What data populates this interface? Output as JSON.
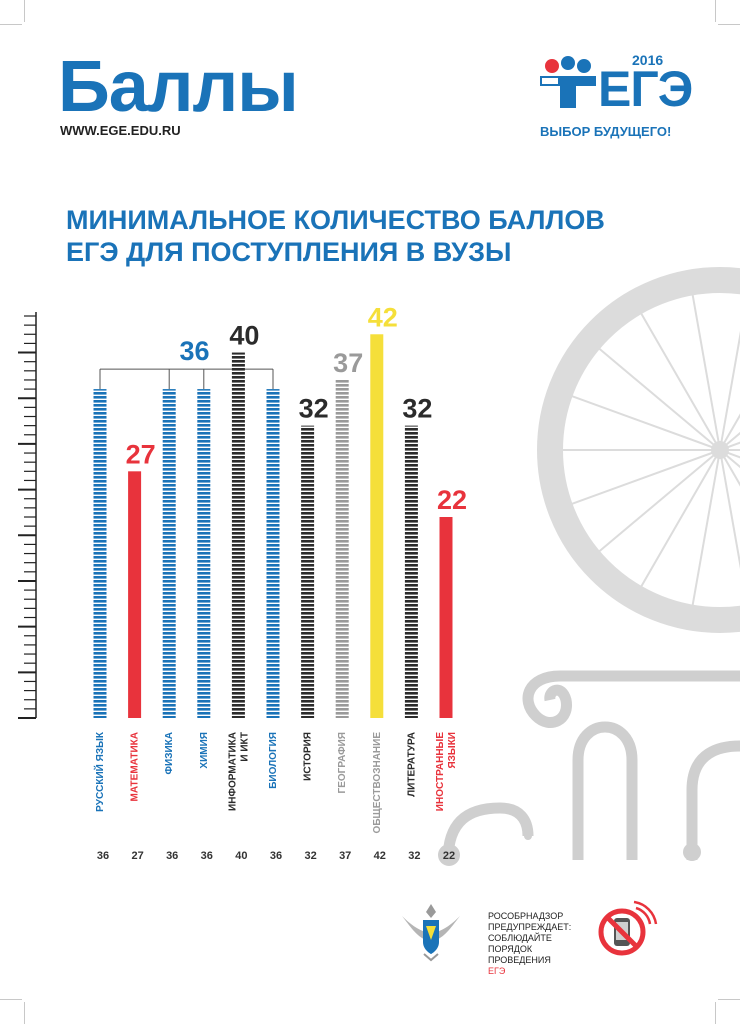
{
  "header": {
    "title": "Баллы",
    "url": "WWW.EGE.EDU.RU"
  },
  "logo": {
    "year": "2016",
    "text": "ЕГЭ",
    "slogan": "ВЫБОР БУДУЩЕГО!"
  },
  "chart_data": {
    "type": "bar",
    "title": "МИНИМАЛЬНОЕ КОЛИЧЕСТВО БАЛЛОВ ЕГЭ ДЛЯ ПОСТУПЛЕНИЯ В ВУЗЫ",
    "categories": [
      [
        "РУССКИЙ ЯЗЫК"
      ],
      [
        "МАТЕМАТИКА"
      ],
      [
        "ФИЗИКА"
      ],
      [
        "ХИМИЯ"
      ],
      [
        "ИНФОРМАТИКА",
        "И ИКТ"
      ],
      [
        "БИОЛОГИЯ"
      ],
      [
        "ИСТОРИЯ"
      ],
      [
        "ГЕОГРАФИЯ"
      ],
      [
        "ОБЩЕСТВОЗНАНИЕ"
      ],
      [
        "ЛИТЕРАТУРА"
      ],
      [
        "ИНОСТРАННЫЕ",
        "ЯЗЫКИ"
      ]
    ],
    "values": [
      36,
      27,
      36,
      36,
      40,
      36,
      32,
      37,
      42,
      32,
      22
    ],
    "colors": [
      "#1a73b8",
      "#e8333c",
      "#1a73b8",
      "#1a73b8",
      "#2b2b2b",
      "#1a73b8",
      "#2b2b2b",
      "#9a9a9a",
      "#f5df3a",
      "#2b2b2b",
      "#e8333c"
    ],
    "styles": [
      "striped",
      "solid",
      "striped",
      "striped",
      "striped",
      "striped",
      "striped",
      "striped",
      "solid",
      "striped",
      "solid"
    ],
    "label_colors": [
      "#1a73b8",
      "#e8333c",
      "#1a73b8",
      "#1a73b8",
      "#2b2b2b",
      "#1a73b8",
      "#2b2b2b",
      "#9a9a9a",
      "#9a9a9a",
      "#2b2b2b",
      "#e8333c"
    ],
    "value_label_colors": [
      "#1a73b8",
      "#e8333c",
      "#1a73b8",
      "#1a73b8",
      "#2b2b2b",
      "#1a73b8",
      "#2b2b2b",
      "#9a9a9a",
      "#f5df3a",
      "#2b2b2b",
      "#e8333c"
    ],
    "grouped_label": {
      "value": "36",
      "members": [
        0,
        2,
        3,
        5
      ],
      "color": "#1a73b8"
    },
    "ylim": [
      0,
      44
    ]
  },
  "footer": {
    "lines": [
      "РОСОБРНАДЗОР",
      "ПРЕДУПРЕЖДАЕТ:",
      "СОБЛЮДАЙТЕ",
      "ПОРЯДОК",
      "ПРОВЕДЕНИЯ"
    ],
    "highlight": "ЕГЭ"
  }
}
